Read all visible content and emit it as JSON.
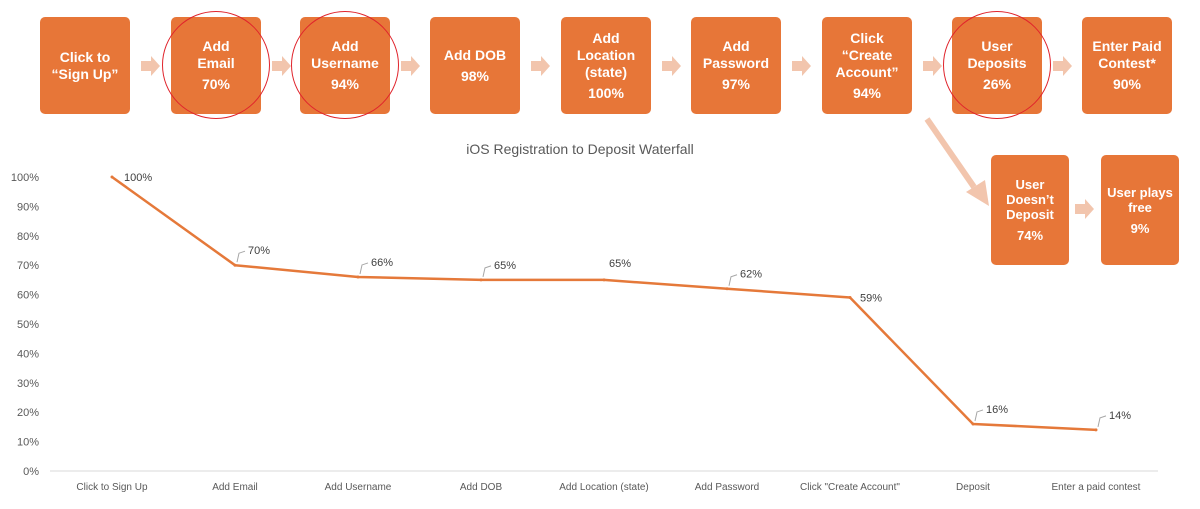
{
  "colors": {
    "box": "#e77638",
    "arrow": "#f2c5ad",
    "ring": "#e0242c",
    "line": "#e5793a",
    "axis_text": "#595959"
  },
  "funnel": [
    {
      "label": "Click to\n“Sign Up”",
      "pct": ""
    },
    {
      "label": "Add\nEmail",
      "pct": "70%"
    },
    {
      "label": "Add\nUsername",
      "pct": "94%"
    },
    {
      "label": "Add DOB",
      "pct": "98%"
    },
    {
      "label": "Add\nLocation\n(state)",
      "pct": "100%"
    },
    {
      "label": "Add\nPassword",
      "pct": "97%"
    },
    {
      "label": "Click\n“Create\nAccount”",
      "pct": "94%"
    },
    {
      "label": "User\nDeposits",
      "pct": "26%"
    },
    {
      "label": "Enter Paid\nContest*",
      "pct": "90%"
    }
  ],
  "branch": [
    {
      "label": "User\nDoesn’t\nDeposit",
      "pct": "74%"
    },
    {
      "label": "User plays\nfree",
      "pct": "9%"
    }
  ],
  "chart_data": {
    "type": "line",
    "title": "iOS Registration to Deposit Waterfall",
    "categories": [
      "Click to Sign Up",
      "Add Email",
      "Add Username",
      "Add DOB",
      "Add Location (state)",
      "Add Password",
      "Click \"Create Account\"",
      "Deposit",
      "Enter a paid contest"
    ],
    "values": [
      100,
      70,
      66,
      65,
      65,
      62,
      59,
      16,
      14
    ],
    "data_labels": [
      "100%",
      "70%",
      "66%",
      "65%",
      "65%",
      "62%",
      "59%",
      "16%",
      "14%"
    ],
    "yticks": [
      "0%",
      "10%",
      "20%",
      "30%",
      "40%",
      "50%",
      "60%",
      "70%",
      "80%",
      "90%",
      "100%"
    ],
    "ylim": [
      0,
      100
    ],
    "grid": false
  }
}
